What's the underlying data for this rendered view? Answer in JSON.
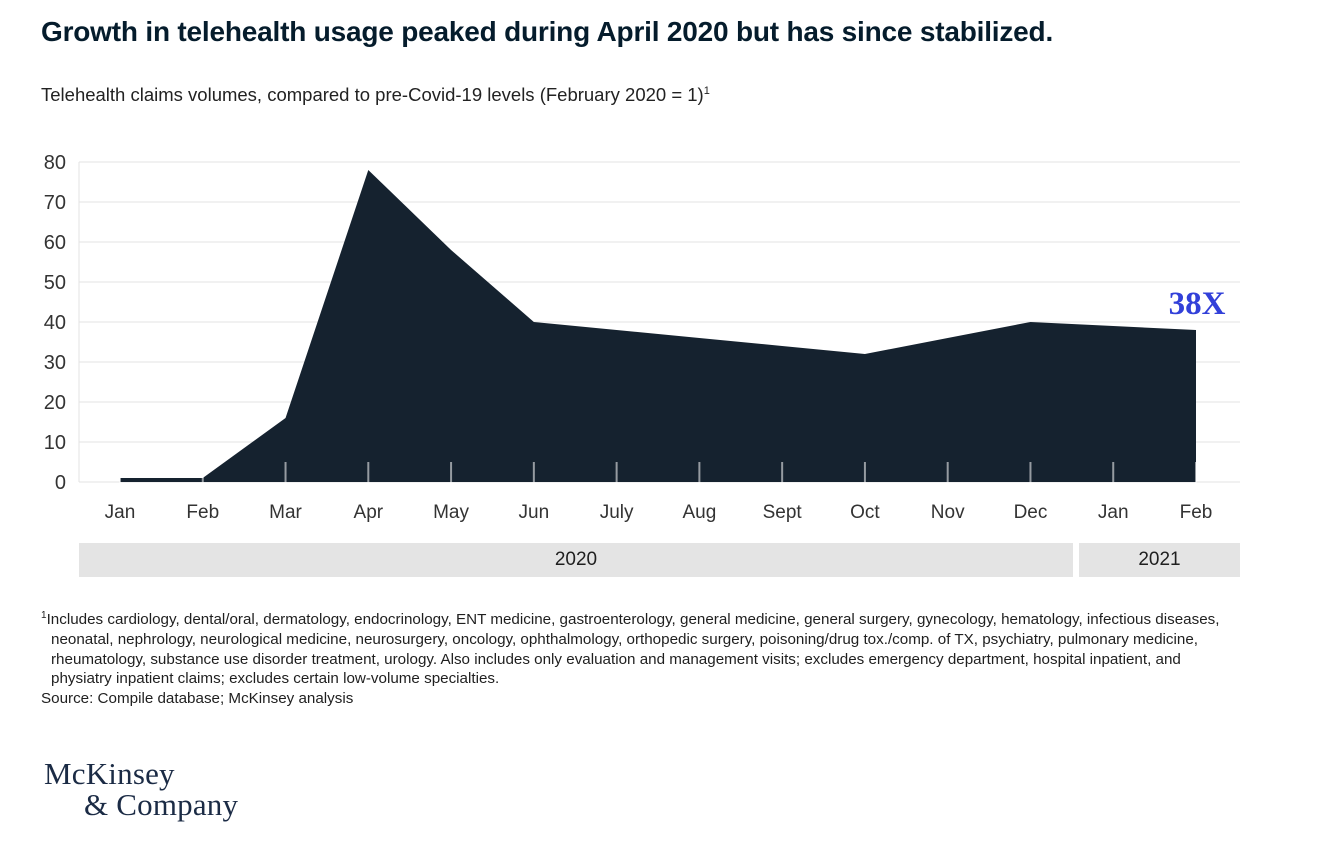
{
  "header": {
    "title": "Growth in telehealth usage peaked during April 2020 but has since stabilized.",
    "subtitle": "Telehealth claims volumes, compared to pre-Covid-19 levels (February 2020 = 1)",
    "subtitle_superscript": "1"
  },
  "chart_data": {
    "type": "area",
    "title": "Growth in telehealth usage peaked during April 2020 but has since stabilized.",
    "subtitle": "Telehealth claims volumes, compared to pre-Covid-19 levels (February 2020 = 1)",
    "categories": [
      "Jan",
      "Feb",
      "Mar",
      "Apr",
      "May",
      "Jun",
      "July",
      "Aug",
      "Sept",
      "Oct",
      "Nov",
      "Dec",
      "Jan",
      "Feb"
    ],
    "values": [
      1,
      1,
      16,
      78,
      58,
      40,
      38,
      36,
      34,
      32,
      36,
      40,
      39,
      38
    ],
    "year_groups": [
      {
        "label": "2020",
        "months": 12
      },
      {
        "label": "2021",
        "months": 2
      }
    ],
    "yticks": [
      0,
      10,
      20,
      30,
      40,
      50,
      60,
      70,
      80
    ],
    "ylim": [
      0,
      80
    ],
    "xlabel": "",
    "ylabel": "",
    "grid": "horizontal",
    "legend": "none",
    "annotation": {
      "label": "38X",
      "color": "#3240d9",
      "at_category_index": 13
    },
    "area_color": "#15222f",
    "gridline_color": "#e3e3e3",
    "year_band_color": "#e4e4e4"
  },
  "footnote": {
    "superscript": "1",
    "text": "Includes cardiology, dental/oral, dermatology, endocrinology, ENT medicine, gastroenterology, general medicine, general surgery, gynecology, hematology, infectious diseases, neonatal, nephrology, neurological medicine, neurosurgery, oncology, ophthalmology, orthopedic surgery, poisoning/drug tox./comp. of TX, psychiatry, pulmonary medicine, rheumatology, substance use disorder treatment, urology. Also includes only evaluation and management visits; excludes emergency department, hospital inpatient, and physiatry inpatient claims; excludes certain low-volume specialties.",
    "source": "Source: Compile database; McKinsey analysis"
  },
  "logo": {
    "line1": "McKinsey",
    "line2": "& Company"
  }
}
